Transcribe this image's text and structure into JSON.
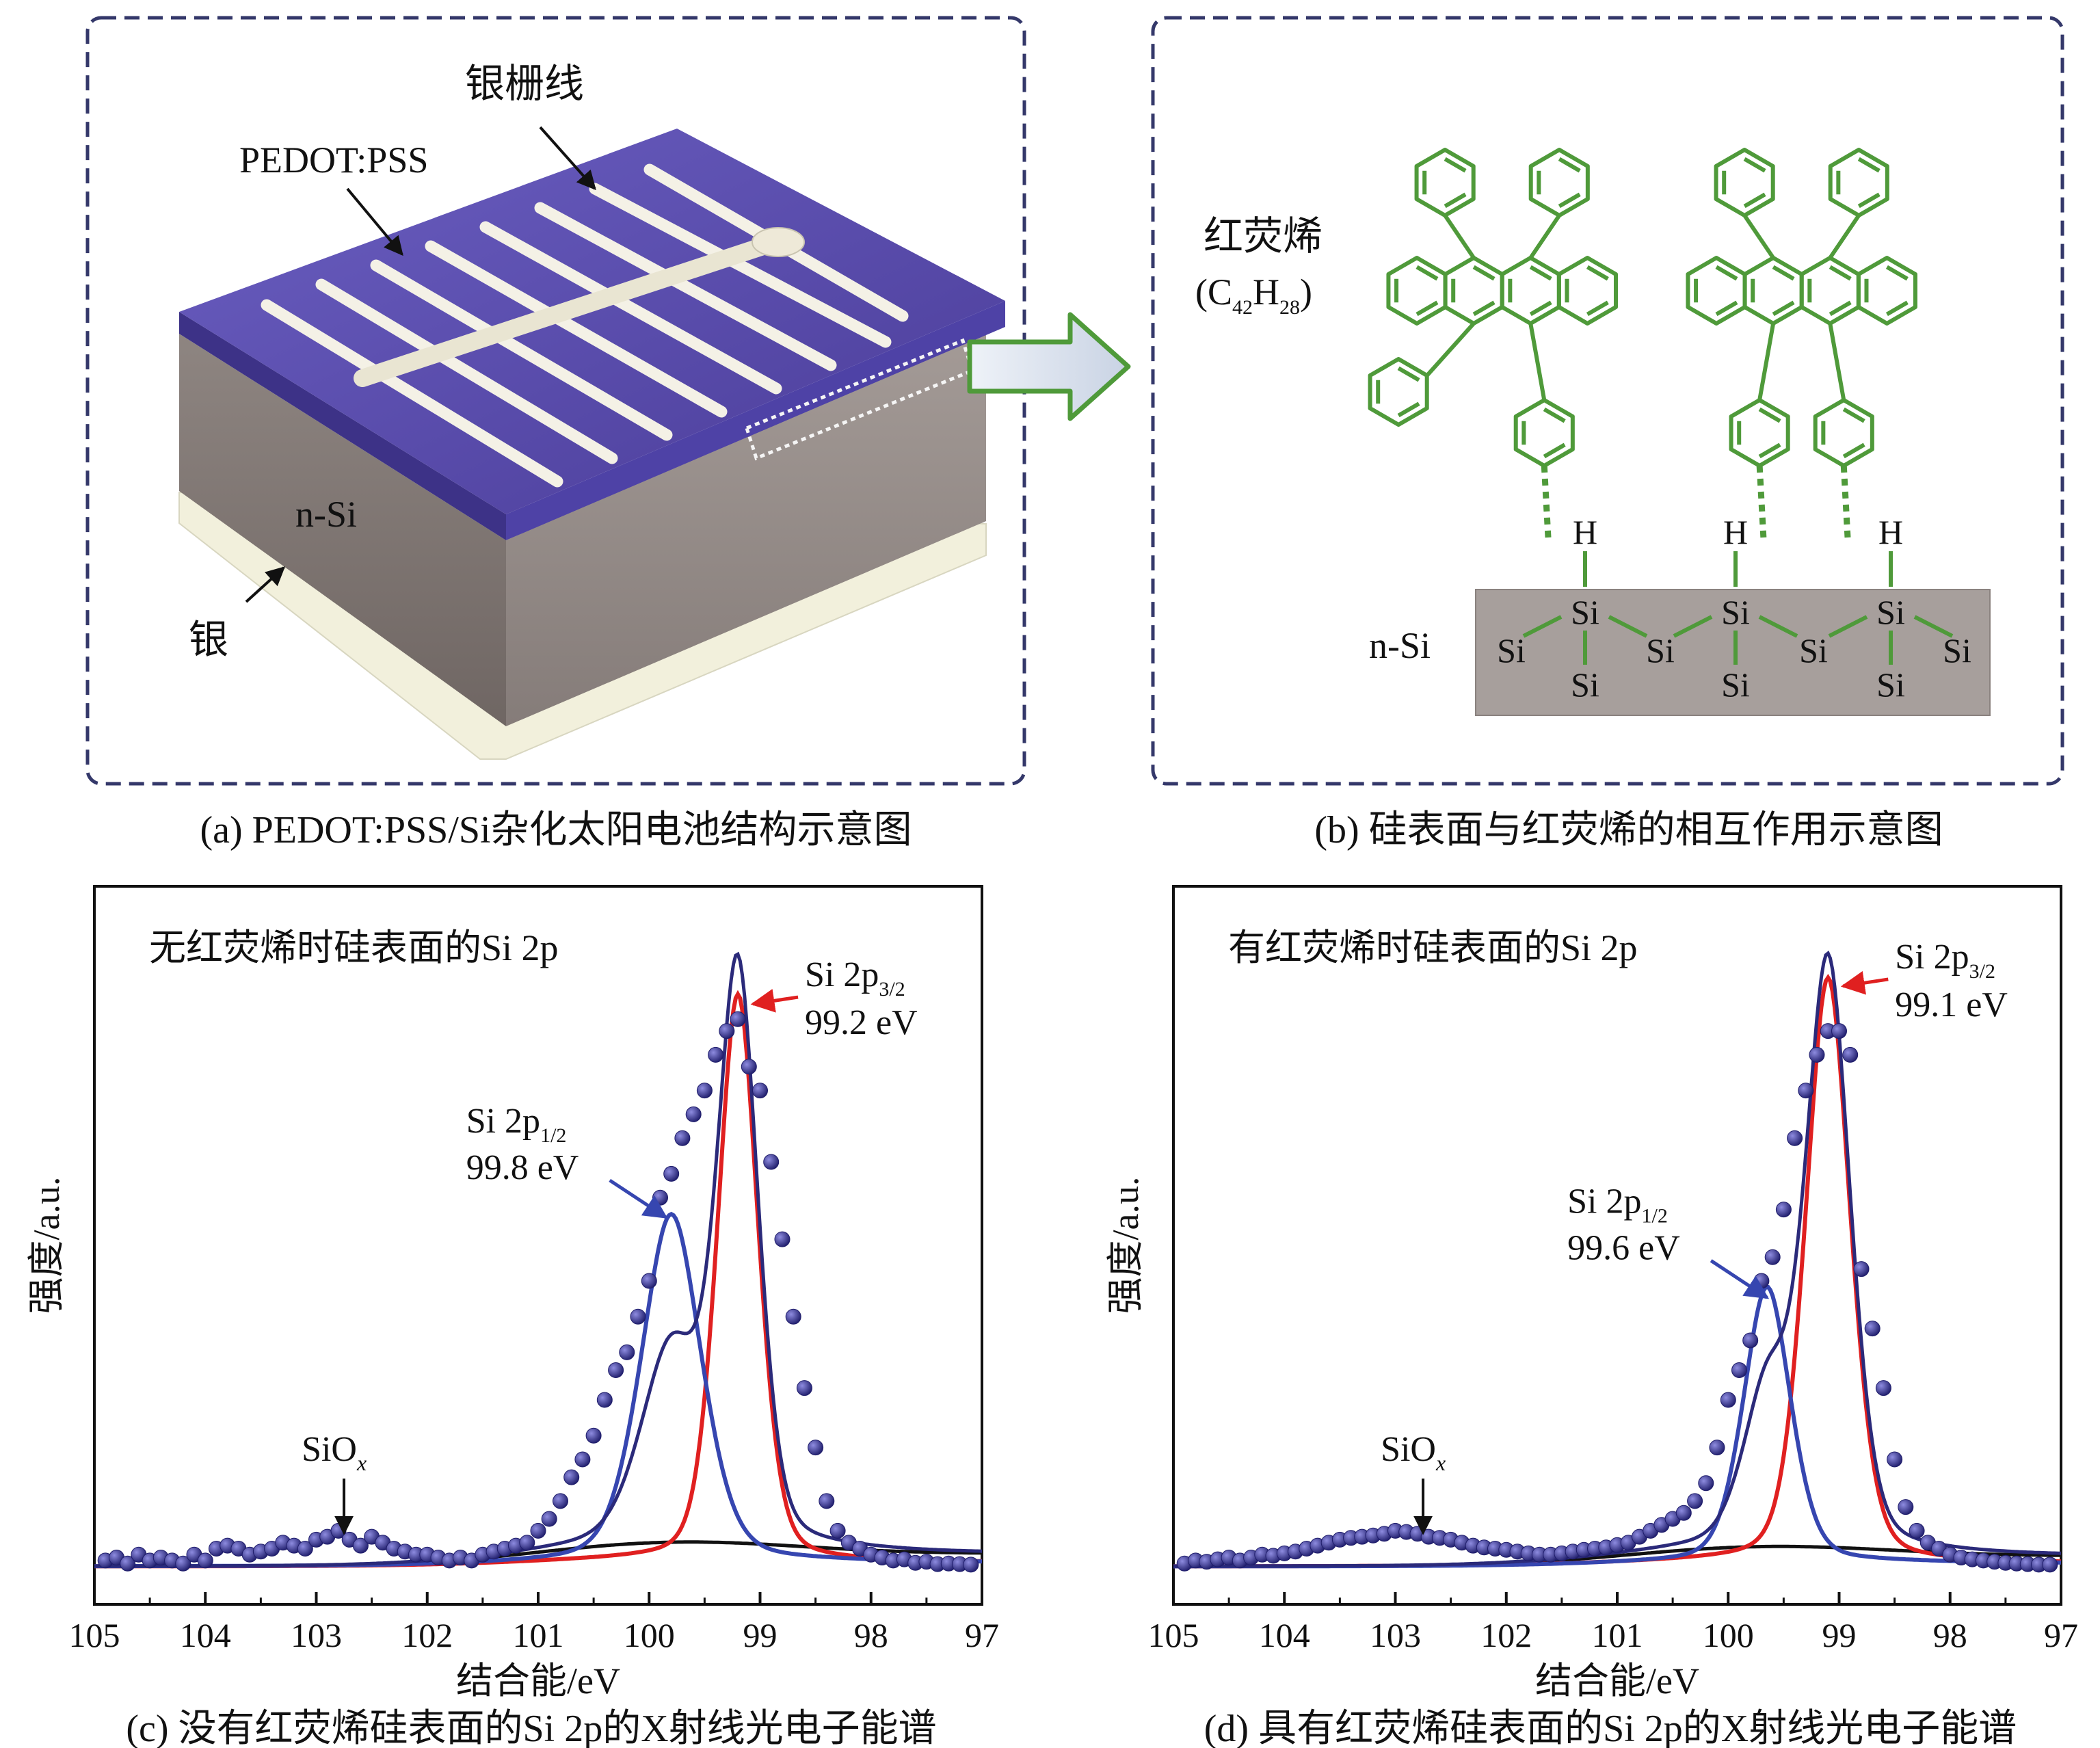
{
  "panel_a": {
    "caption": "(a) PEDOT:PSS/Si杂化太阳电池结构示意图",
    "label_grid": "银栅线",
    "label_pedot": "PEDOT:PSS",
    "label_nsi": "n-Si",
    "label_silver": "银"
  },
  "panel_b": {
    "caption": "(b) 硅表面与红荧烯的相互作用示意图",
    "rubrene_name": "红荧烯",
    "formula": "(C42H28)",
    "formula_parts": [
      "(C",
      "42",
      "H",
      "28",
      ")"
    ],
    "label_nsi": "n-Si",
    "atom_h": "H",
    "atom_si": "Si"
  },
  "colors": {
    "molecule_green": "#4f9a3a",
    "pedot_purple": "#5b4da8",
    "spectrum_navy": "#2b2a7a",
    "fit_red": "#e02020",
    "fit_blue": "#3646b0",
    "background_black": "#111111",
    "substrate_gray": "#a79f9c"
  },
  "chart_data": [
    {
      "type": "line",
      "caption": "(c) 没有红荧烯硅表面的Si 2p的X射线光电子能谱",
      "title": "无红荧烯时硅表面的Si 2p",
      "xlabel": "结合能/eV",
      "ylabel": "强度/a.u.",
      "xlim": [
        105,
        97
      ],
      "x_reversed": true,
      "x_ticks": [
        "105",
        "104",
        "103",
        "102",
        "101",
        "100",
        "99",
        "98",
        "97"
      ],
      "annotations": [
        {
          "label": "Si 2p",
          "sub": "3/2",
          "energy": "99.2 eV",
          "x": 99.2
        },
        {
          "label": "Si 2p",
          "sub": "1/2",
          "energy": "99.8 eV",
          "x": 99.8
        },
        {
          "label": "SiO",
          "sub": "x",
          "x": 102.75
        }
      ],
      "series": [
        {
          "role": "fit_red",
          "peak_x": 99.2,
          "peak_height": 0.95,
          "width": 0.19
        },
        {
          "role": "fit_blue",
          "peak_x": 99.8,
          "peak_height": 0.58,
          "width": 0.28
        },
        {
          "role": "background",
          "step_x": 99.5,
          "height": 0.055
        },
        {
          "role": "envelope"
        },
        {
          "role": "data_points",
          "x": [
            104.9,
            104.8,
            104.7,
            104.6,
            104.5,
            104.4,
            104.3,
            104.2,
            104.1,
            104.0,
            103.9,
            103.8,
            103.7,
            103.6,
            103.5,
            103.4,
            103.3,
            103.2,
            103.1,
            103.0,
            102.9,
            102.8,
            102.7,
            102.6,
            102.5,
            102.4,
            102.3,
            102.2,
            102.1,
            102.0,
            101.9,
            101.8,
            101.7,
            101.6,
            101.5,
            101.4,
            101.3,
            101.2,
            101.1,
            101.0,
            100.9,
            100.8,
            100.7,
            100.6,
            100.5,
            100.4,
            100.3,
            100.2,
            100.1,
            100.0,
            99.9,
            99.8,
            99.7,
            99.6,
            99.5,
            99.4,
            99.3,
            99.2,
            99.1,
            99.0,
            98.9,
            98.8,
            98.7,
            98.6,
            98.5,
            98.4,
            98.3,
            98.2,
            98.1,
            98.0,
            97.9,
            97.8,
            97.7,
            97.6,
            97.5,
            97.4,
            97.3,
            97.2,
            97.1
          ],
          "y": [
            0.01,
            0.015,
            0.005,
            0.02,
            0.01,
            0.015,
            0.01,
            0.005,
            0.02,
            0.01,
            0.03,
            0.035,
            0.03,
            0.02,
            0.025,
            0.03,
            0.04,
            0.035,
            0.03,
            0.045,
            0.05,
            0.06,
            0.045,
            0.035,
            0.05,
            0.04,
            0.03,
            0.025,
            0.02,
            0.02,
            0.015,
            0.01,
            0.015,
            0.01,
            0.02,
            0.025,
            0.03,
            0.035,
            0.04,
            0.06,
            0.08,
            0.11,
            0.15,
            0.18,
            0.22,
            0.28,
            0.33,
            0.36,
            0.42,
            0.48,
            0.62,
            0.66,
            0.72,
            0.76,
            0.8,
            0.86,
            0.9,
            0.92,
            0.84,
            0.8,
            0.68,
            0.55,
            0.42,
            0.3,
            0.2,
            0.11,
            0.06,
            0.04,
            0.03,
            0.02,
            0.015,
            0.01,
            0.012,
            0.006,
            0.008,
            0.004,
            0.005,
            0.004,
            0.003
          ]
        }
      ]
    },
    {
      "type": "line",
      "caption": "(d) 具有红荧烯硅表面的Si 2p的X射线光电子能谱",
      "title": "有红荧烯时硅表面的Si 2p",
      "xlabel": "结合能/eV",
      "ylabel": "强度/a.u.",
      "xlim": [
        105,
        97
      ],
      "x_reversed": true,
      "x_ticks": [
        "105",
        "104",
        "103",
        "102",
        "101",
        "100",
        "99",
        "98",
        "97"
      ],
      "annotations": [
        {
          "label": "Si 2p",
          "sub": "3/2",
          "energy": "99.1 eV",
          "x": 99.1
        },
        {
          "label": "Si 2p",
          "sub": "1/2",
          "energy": "99.6 eV",
          "x": 99.6
        },
        {
          "label": "SiO",
          "sub": "x",
          "x": 102.75
        }
      ],
      "series": [
        {
          "role": "fit_red",
          "peak_x": 99.1,
          "peak_height": 0.98,
          "width": 0.21
        },
        {
          "role": "fit_blue",
          "peak_x": 99.65,
          "peak_height": 0.46,
          "width": 0.22
        },
        {
          "role": "background",
          "step_x": 99.4,
          "height": 0.045
        },
        {
          "role": "envelope"
        },
        {
          "role": "data_points",
          "x": [
            104.9,
            104.8,
            104.7,
            104.6,
            104.5,
            104.4,
            104.3,
            104.2,
            104.1,
            104.0,
            103.9,
            103.8,
            103.7,
            103.6,
            103.5,
            103.4,
            103.3,
            103.2,
            103.1,
            103.0,
            102.9,
            102.8,
            102.7,
            102.6,
            102.5,
            102.4,
            102.3,
            102.2,
            102.1,
            102.0,
            101.9,
            101.8,
            101.7,
            101.6,
            101.5,
            101.4,
            101.3,
            101.2,
            101.1,
            101.0,
            100.9,
            100.8,
            100.7,
            100.6,
            100.5,
            100.4,
            100.3,
            100.2,
            100.1,
            100.0,
            99.9,
            99.8,
            99.7,
            99.6,
            99.5,
            99.4,
            99.3,
            99.2,
            99.1,
            99.0,
            98.9,
            98.8,
            98.7,
            98.6,
            98.5,
            98.4,
            98.3,
            98.2,
            98.1,
            98.0,
            97.9,
            97.8,
            97.7,
            97.6,
            97.5,
            97.4,
            97.3,
            97.2,
            97.1
          ],
          "y": [
            0.005,
            0.01,
            0.008,
            0.012,
            0.015,
            0.01,
            0.015,
            0.02,
            0.018,
            0.022,
            0.025,
            0.03,
            0.035,
            0.04,
            0.045,
            0.048,
            0.05,
            0.052,
            0.055,
            0.06,
            0.058,
            0.055,
            0.05,
            0.048,
            0.045,
            0.04,
            0.035,
            0.032,
            0.03,
            0.028,
            0.025,
            0.022,
            0.02,
            0.02,
            0.022,
            0.025,
            0.028,
            0.03,
            0.032,
            0.036,
            0.04,
            0.05,
            0.06,
            0.07,
            0.08,
            0.09,
            0.11,
            0.14,
            0.2,
            0.28,
            0.33,
            0.38,
            0.48,
            0.52,
            0.6,
            0.72,
            0.8,
            0.86,
            0.9,
            0.9,
            0.86,
            0.5,
            0.4,
            0.3,
            0.18,
            0.1,
            0.06,
            0.04,
            0.03,
            0.02,
            0.015,
            0.012,
            0.01,
            0.008,
            0.006,
            0.005,
            0.004,
            0.003,
            0.003
          ]
        }
      ]
    }
  ]
}
